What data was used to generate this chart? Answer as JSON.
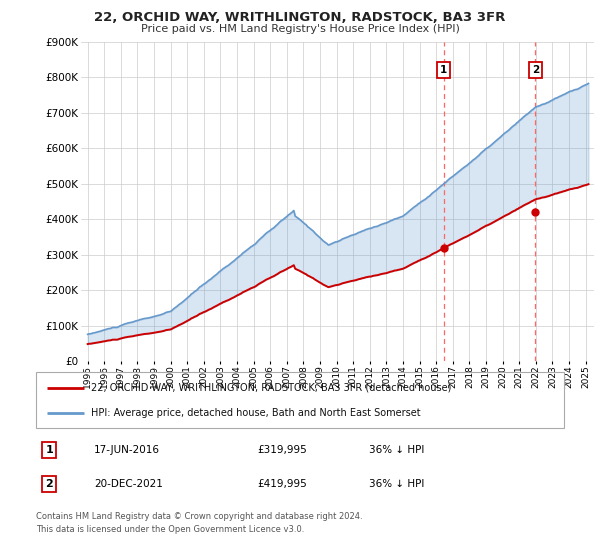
{
  "title": "22, ORCHID WAY, WRITHLINGTON, RADSTOCK, BA3 3FR",
  "subtitle": "Price paid vs. HM Land Registry's House Price Index (HPI)",
  "ylim": [
    0,
    900000
  ],
  "yticks": [
    0,
    100000,
    200000,
    300000,
    400000,
    500000,
    600000,
    700000,
    800000,
    900000
  ],
  "ytick_labels": [
    "£0",
    "£100K",
    "£200K",
    "£300K",
    "£400K",
    "£500K",
    "£600K",
    "£700K",
    "£800K",
    "£900K"
  ],
  "hpi_color": "#6699CC",
  "price_color": "#CC0000",
  "transaction1_x": 2016.46,
  "transaction1_price": 319995,
  "transaction2_x": 2021.97,
  "transaction2_price": 419995,
  "legend_house_label": "22, ORCHID WAY, WRITHLINGTON, RADSTOCK, BA3 3FR (detached house)",
  "legend_hpi_label": "HPI: Average price, detached house, Bath and North East Somerset",
  "footer": "Contains HM Land Registry data © Crown copyright and database right 2024.\nThis data is licensed under the Open Government Licence v3.0.",
  "background_color": "#FFFFFF"
}
